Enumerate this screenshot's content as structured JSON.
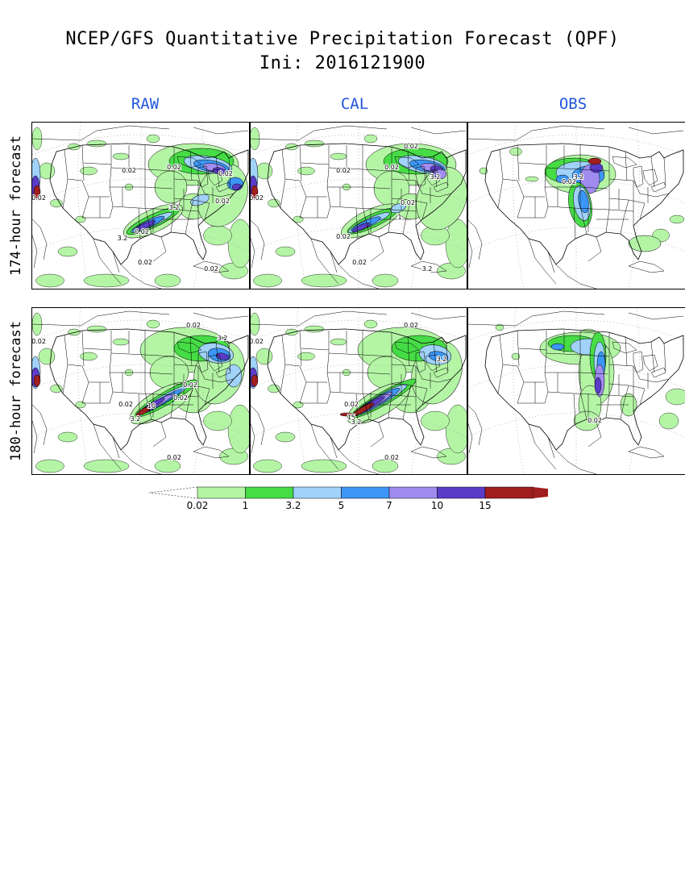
{
  "title_line1": "NCEP/GFS Quantitative Precipitation Forecast (QPF)",
  "title_line2": "Ini: 2016121900",
  "columns": [
    "RAW",
    "CAL",
    "OBS"
  ],
  "rows": [
    "174-hour forecast",
    "180-hour forecast"
  ],
  "colorbar": {
    "levels": [
      "0.02",
      "1",
      "3.2",
      "5",
      "7",
      "10",
      "15"
    ],
    "colors": [
      "#b4f5a5",
      "#46dc46",
      "#a0d2fa",
      "#3c96f5",
      "#a08cf0",
      "#5a3cc8",
      "#a01e1e"
    ]
  },
  "panel_labels": {
    "r0c0": [
      "0.02",
      "0.02",
      "0.02",
      "3.2",
      "0.02",
      "3.2",
      "0.02",
      "0.02",
      "0.02",
      "0.02"
    ],
    "r0c1": [
      "0.02",
      "0.02",
      "0.02",
      "1",
      "3.2",
      "0.02",
      "0.02",
      "3.2",
      "0.02",
      "0.02"
    ],
    "r0c2": [
      "3.2",
      "0.02"
    ],
    "r1c0": [
      "0.02",
      "0.02",
      "3.2",
      "0.02",
      "0.02",
      "10",
      "0.02",
      "3.2",
      "0.02"
    ],
    "r1c1": [
      "0.02",
      "0.02",
      "3.2",
      "0.02",
      "15",
      "3.2",
      "0.02"
    ],
    "r1c2": [
      "0.02"
    ]
  }
}
